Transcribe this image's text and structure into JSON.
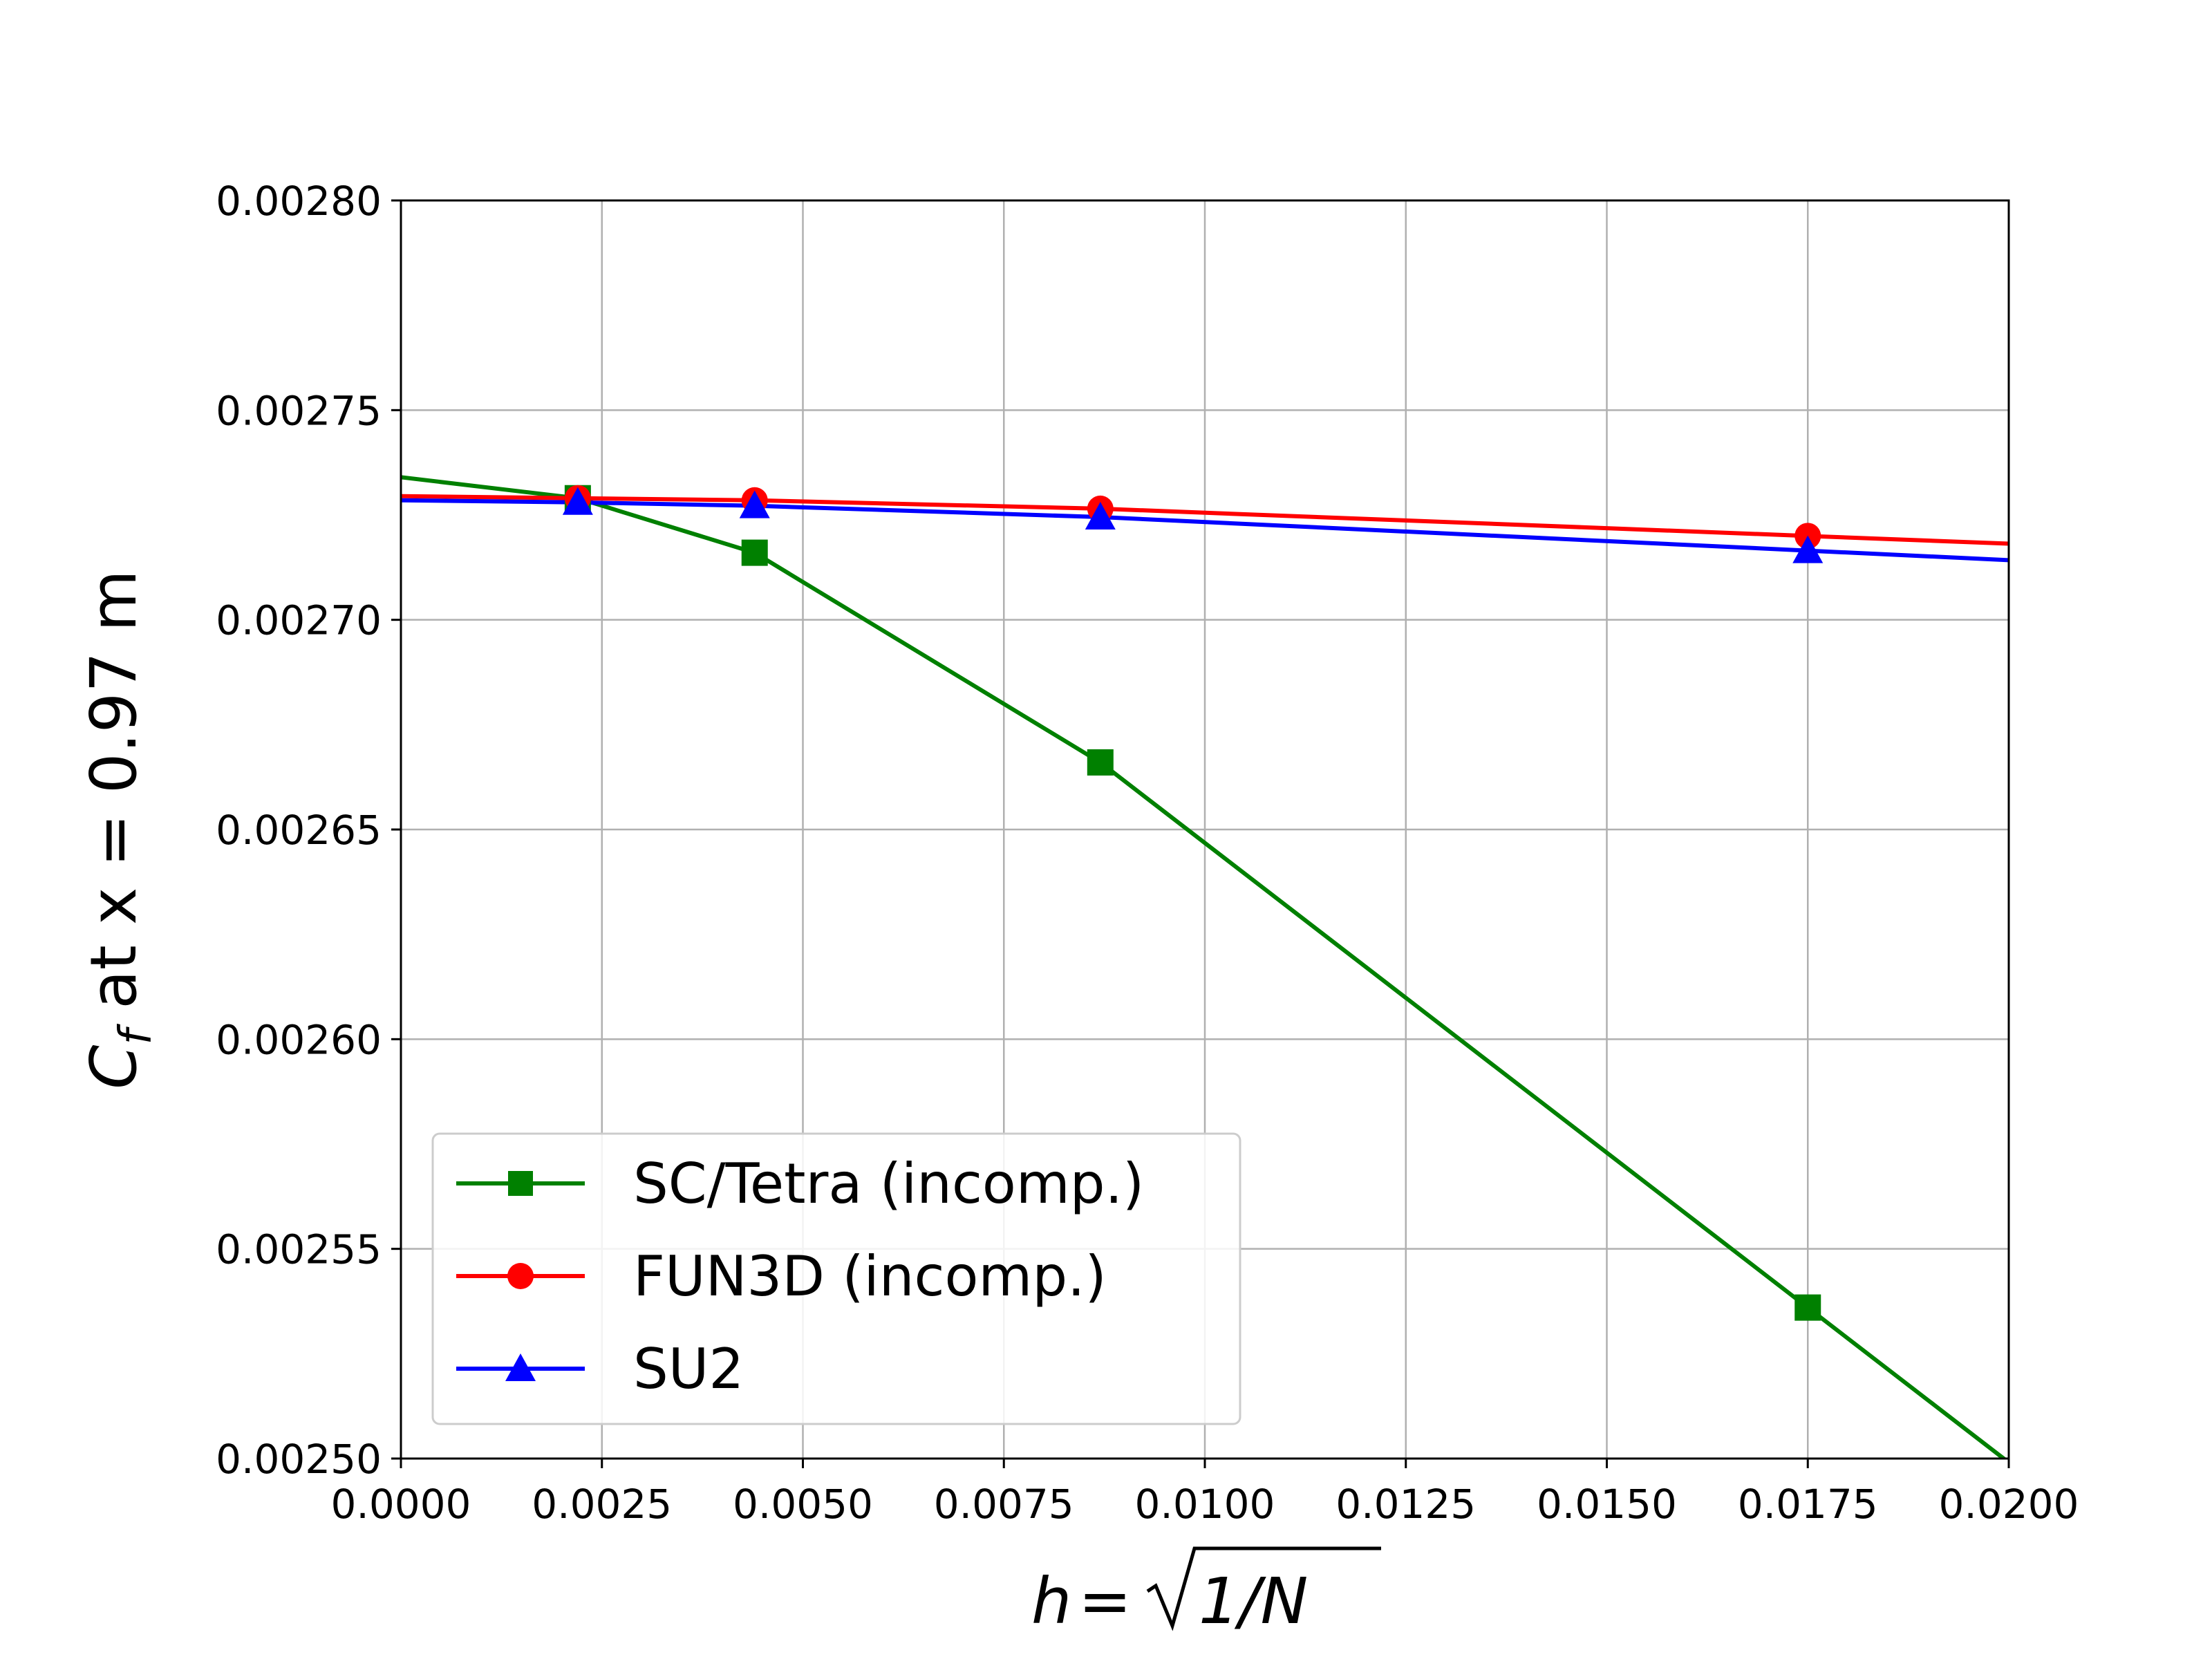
{
  "chart_data": {
    "type": "line",
    "xlabel": "h = √1/N",
    "xlabel_parts": {
      "h": "h",
      "eq": "=",
      "expr": "1/N"
    },
    "ylabel": "C_f at x = 0.97 m",
    "ylabel_parts": {
      "symbol": "C",
      "subscript": "f",
      "rest": "at x = 0.97 m"
    },
    "xlim": [
      0.0,
      0.02
    ],
    "ylim": [
      0.0025,
      0.0028
    ],
    "grid": true,
    "legend_position": "lower-left",
    "x_ticks": [
      "0.0000",
      "0.0025",
      "0.0050",
      "0.0075",
      "0.0100",
      "0.0125",
      "0.0150",
      "0.0175",
      "0.0200"
    ],
    "x_tick_values": [
      0.0,
      0.0025,
      0.005,
      0.0075,
      0.01,
      0.0125,
      0.015,
      0.0175,
      0.02
    ],
    "y_ticks": [
      "0.00250",
      "0.00255",
      "0.00260",
      "0.00265",
      "0.00270",
      "0.00275",
      "0.00280"
    ],
    "y_tick_values": [
      0.0025,
      0.00255,
      0.0026,
      0.00265,
      0.0027,
      0.00275,
      0.0028
    ],
    "series": [
      {
        "name": "SC/Tetra (incomp.)",
        "color": "#008000",
        "marker": "square",
        "x": [
          0.0,
          0.0022,
          0.0044,
          0.0087,
          0.0175
        ],
        "y": [
          0.002734,
          0.002729,
          0.002716,
          0.002666,
          0.002536
        ],
        "extends_to_edge": true
      },
      {
        "name": "FUN3D (incomp.)",
        "color": "#ff0000",
        "marker": "circle",
        "x": [
          0.0,
          0.0022,
          0.0044,
          0.0087,
          0.0175
        ],
        "y": [
          0.0027295,
          0.002729,
          0.0027285,
          0.0027265,
          0.00272
        ],
        "extends_to_edge": true
      },
      {
        "name": "SU2",
        "color": "#0000ff",
        "marker": "triangle",
        "x": [
          0.0,
          0.0022,
          0.0044,
          0.0087,
          0.0175
        ],
        "y": [
          0.0027285,
          0.002728,
          0.0027272,
          0.0027245,
          0.0027165
        ],
        "extends_to_edge": true
      }
    ]
  }
}
